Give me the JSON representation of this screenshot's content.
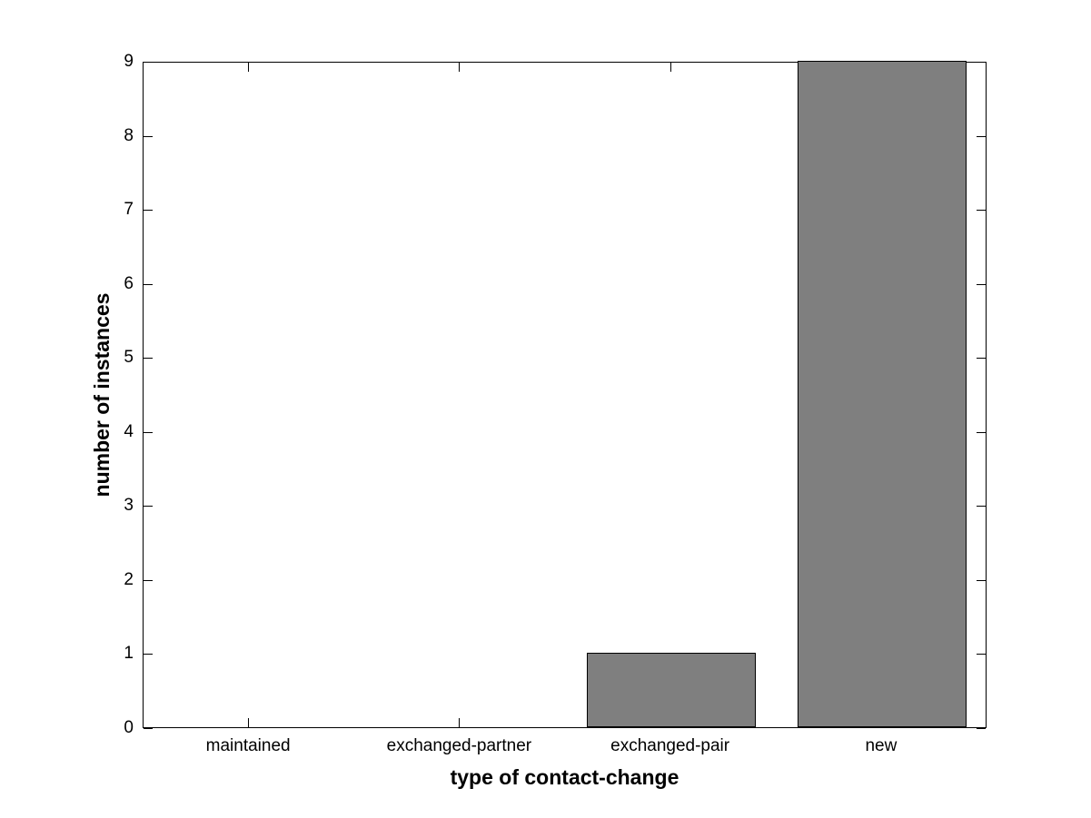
{
  "chart_data": {
    "type": "bar",
    "categories": [
      "maintained",
      "exchanged-partner",
      "exchanged-pair",
      "new"
    ],
    "values": [
      0,
      0,
      1,
      9
    ],
    "title": "",
    "xlabel": "type of contact-change",
    "ylabel": "number of instances",
    "ylim": [
      0,
      9
    ],
    "yticks": [
      0,
      1,
      2,
      3,
      4,
      5,
      6,
      7,
      8,
      9
    ],
    "bar_width_fraction": 0.8,
    "bar_color": "#7f7f7f",
    "bar_edge_color": "#000000",
    "axis_color": "#000000",
    "background_color": "#ffffff",
    "grid": false,
    "legend": null,
    "tick_direction": "in",
    "box": true
  }
}
